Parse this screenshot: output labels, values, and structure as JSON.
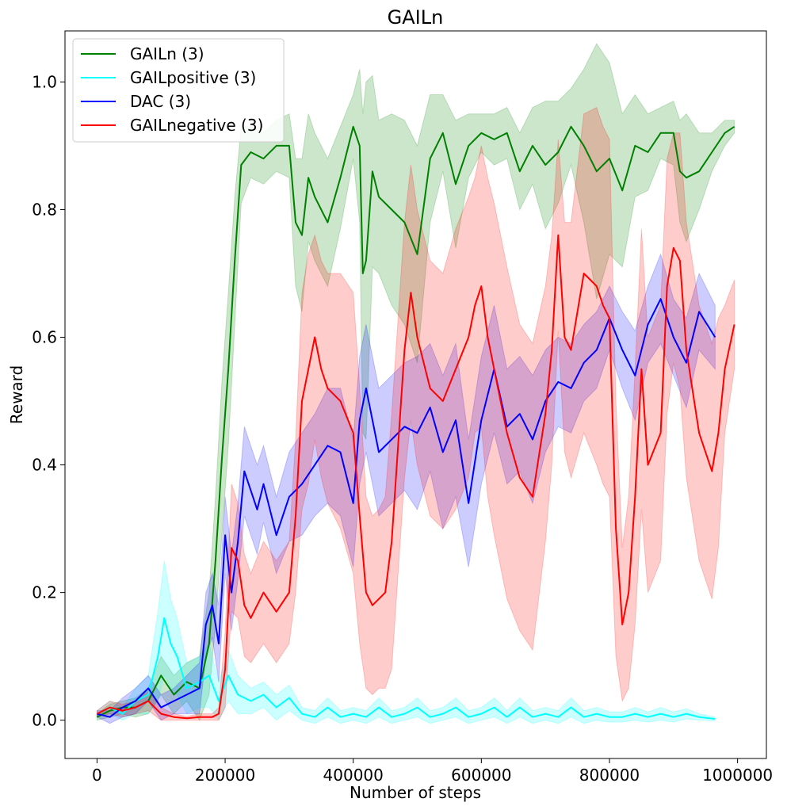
{
  "chart_data": {
    "type": "line",
    "title": "GAILn",
    "xlabel": "Number of steps",
    "ylabel": "Reward",
    "xlim": [
      -50000,
      1045000
    ],
    "ylim": [
      -0.06,
      1.08
    ],
    "xticks": [
      0,
      200000,
      400000,
      600000,
      800000,
      1000000
    ],
    "xtick_labels": [
      "0",
      "200000",
      "400000",
      "600000",
      "800000",
      "1000000"
    ],
    "yticks": [
      0.0,
      0.2,
      0.4,
      0.6,
      0.8,
      1.0
    ],
    "ytick_labels": [
      "0.0",
      "0.2",
      "0.4",
      "0.6",
      "0.8",
      "1.0"
    ],
    "grid": false,
    "legend_position": "top-left",
    "series": [
      {
        "name": "GAILn (3)",
        "color": "#008000",
        "x": [
          0,
          20000,
          40000,
          60000,
          80000,
          100000,
          120000,
          140000,
          160000,
          175000,
          185000,
          195000,
          205000,
          215000,
          225000,
          240000,
          260000,
          280000,
          300000,
          310000,
          320000,
          330000,
          340000,
          350000,
          360000,
          380000,
          400000,
          410000,
          415000,
          420000,
          430000,
          440000,
          460000,
          480000,
          500000,
          520000,
          540000,
          560000,
          580000,
          600000,
          620000,
          640000,
          660000,
          680000,
          700000,
          720000,
          740000,
          760000,
          780000,
          800000,
          820000,
          840000,
          860000,
          880000,
          900000,
          910000,
          920000,
          940000,
          960000,
          980000,
          995000
        ],
        "values": [
          0.005,
          0.015,
          0.02,
          0.02,
          0.03,
          0.07,
          0.04,
          0.06,
          0.05,
          0.12,
          0.25,
          0.41,
          0.55,
          0.72,
          0.87,
          0.89,
          0.88,
          0.9,
          0.9,
          0.78,
          0.76,
          0.85,
          0.82,
          0.8,
          0.78,
          0.85,
          0.93,
          0.9,
          0.7,
          0.72,
          0.86,
          0.82,
          0.8,
          0.78,
          0.73,
          0.88,
          0.92,
          0.84,
          0.9,
          0.92,
          0.91,
          0.92,
          0.86,
          0.9,
          0.87,
          0.89,
          0.93,
          0.9,
          0.86,
          0.88,
          0.83,
          0.9,
          0.89,
          0.92,
          0.92,
          0.86,
          0.85,
          0.86,
          0.89,
          0.92,
          0.93
        ],
        "band_half_width": [
          0.005,
          0.01,
          0.01,
          0.015,
          0.02,
          0.03,
          0.03,
          0.03,
          0.05,
          0.08,
          0.1,
          0.12,
          0.12,
          0.1,
          0.06,
          0.04,
          0.04,
          0.04,
          0.05,
          0.1,
          0.12,
          0.1,
          0.1,
          0.1,
          0.1,
          0.08,
          0.05,
          0.12,
          0.25,
          0.28,
          0.15,
          0.12,
          0.15,
          0.16,
          0.17,
          0.1,
          0.06,
          0.1,
          0.05,
          0.03,
          0.04,
          0.04,
          0.06,
          0.06,
          0.1,
          0.08,
          0.06,
          0.12,
          0.2,
          0.15,
          0.12,
          0.08,
          0.06,
          0.04,
          0.05,
          0.08,
          0.1,
          0.06,
          0.03,
          0.02,
          0.01
        ]
      },
      {
        "name": "GAILpositive (3)",
        "color": "#00ffff",
        "x": [
          0,
          20000,
          40000,
          60000,
          80000,
          95000,
          105000,
          115000,
          125000,
          140000,
          160000,
          175000,
          190000,
          205000,
          220000,
          240000,
          260000,
          280000,
          300000,
          320000,
          340000,
          360000,
          380000,
          400000,
          420000,
          440000,
          460000,
          480000,
          500000,
          520000,
          540000,
          560000,
          580000,
          600000,
          620000,
          640000,
          660000,
          680000,
          700000,
          720000,
          740000,
          760000,
          780000,
          800000,
          820000,
          840000,
          860000,
          880000,
          900000,
          920000,
          940000,
          965000
        ],
        "values": [
          0.01,
          0.02,
          0.01,
          0.03,
          0.04,
          0.1,
          0.16,
          0.12,
          0.1,
          0.05,
          0.06,
          0.07,
          0.03,
          0.07,
          0.04,
          0.03,
          0.04,
          0.02,
          0.035,
          0.01,
          0.005,
          0.02,
          0.005,
          0.01,
          0.005,
          0.02,
          0.005,
          0.01,
          0.02,
          0.005,
          0.01,
          0.02,
          0.005,
          0.01,
          0.02,
          0.005,
          0.02,
          0.005,
          0.01,
          0.005,
          0.02,
          0.005,
          0.01,
          0.005,
          0.005,
          0.01,
          0.005,
          0.01,
          0.005,
          0.01,
          0.005,
          0.002
        ],
        "band_half_width": [
          0.005,
          0.01,
          0.01,
          0.02,
          0.03,
          0.07,
          0.09,
          0.07,
          0.06,
          0.04,
          0.04,
          0.05,
          0.03,
          0.04,
          0.03,
          0.02,
          0.02,
          0.02,
          0.02,
          0.01,
          0.01,
          0.015,
          0.01,
          0.01,
          0.01,
          0.015,
          0.01,
          0.01,
          0.015,
          0.01,
          0.01,
          0.015,
          0.01,
          0.01,
          0.015,
          0.01,
          0.015,
          0.01,
          0.01,
          0.01,
          0.015,
          0.01,
          0.01,
          0.008,
          0.008,
          0.01,
          0.008,
          0.01,
          0.008,
          0.008,
          0.005,
          0.003
        ]
      },
      {
        "name": "DAC (3)",
        "color": "#0000ff",
        "x": [
          0,
          20000,
          40000,
          60000,
          80000,
          100000,
          120000,
          140000,
          160000,
          170000,
          180000,
          190000,
          200000,
          210000,
          220000,
          230000,
          250000,
          260000,
          280000,
          300000,
          320000,
          340000,
          360000,
          380000,
          400000,
          410000,
          420000,
          440000,
          460000,
          480000,
          500000,
          520000,
          540000,
          560000,
          580000,
          600000,
          620000,
          640000,
          660000,
          680000,
          700000,
          720000,
          740000,
          760000,
          780000,
          800000,
          820000,
          840000,
          860000,
          880000,
          900000,
          920000,
          940000,
          965000
        ],
        "values": [
          0.01,
          0.005,
          0.02,
          0.03,
          0.05,
          0.02,
          0.03,
          0.04,
          0.05,
          0.15,
          0.18,
          0.12,
          0.29,
          0.2,
          0.28,
          0.39,
          0.33,
          0.37,
          0.29,
          0.35,
          0.37,
          0.4,
          0.43,
          0.42,
          0.34,
          0.47,
          0.52,
          0.42,
          0.44,
          0.46,
          0.45,
          0.49,
          0.42,
          0.47,
          0.34,
          0.47,
          0.55,
          0.46,
          0.48,
          0.44,
          0.5,
          0.53,
          0.52,
          0.56,
          0.58,
          0.63,
          0.58,
          0.54,
          0.62,
          0.66,
          0.6,
          0.56,
          0.64,
          0.6
        ],
        "band_half_width": [
          0.005,
          0.01,
          0.015,
          0.02,
          0.02,
          0.02,
          0.02,
          0.03,
          0.04,
          0.05,
          0.05,
          0.06,
          0.06,
          0.06,
          0.06,
          0.07,
          0.07,
          0.06,
          0.06,
          0.07,
          0.08,
          0.08,
          0.09,
          0.1,
          0.1,
          0.1,
          0.1,
          0.1,
          0.1,
          0.1,
          0.12,
          0.1,
          0.12,
          0.12,
          0.1,
          0.1,
          0.1,
          0.09,
          0.09,
          0.1,
          0.08,
          0.07,
          0.07,
          0.06,
          0.06,
          0.05,
          0.06,
          0.07,
          0.06,
          0.07,
          0.06,
          0.07,
          0.06,
          0.05
        ]
      },
      {
        "name": "GAILnegative (3)",
        "color": "#ff0000",
        "x": [
          0,
          20000,
          40000,
          60000,
          80000,
          100000,
          120000,
          140000,
          160000,
          180000,
          190000,
          200000,
          210000,
          220000,
          230000,
          240000,
          260000,
          280000,
          300000,
          310000,
          320000,
          330000,
          340000,
          350000,
          360000,
          380000,
          400000,
          410000,
          420000,
          430000,
          440000,
          450000,
          460000,
          480000,
          490000,
          500000,
          520000,
          540000,
          560000,
          580000,
          590000,
          600000,
          610000,
          620000,
          640000,
          660000,
          680000,
          700000,
          710000,
          720000,
          730000,
          740000,
          760000,
          780000,
          790000,
          800000,
          810000,
          820000,
          830000,
          840000,
          850000,
          860000,
          880000,
          890000,
          900000,
          910000,
          920000,
          940000,
          960000,
          970000,
          980000,
          995000
        ],
        "values": [
          0.01,
          0.02,
          0.015,
          0.02,
          0.03,
          0.01,
          0.005,
          0.003,
          0.005,
          0.005,
          0.01,
          0.08,
          0.27,
          0.25,
          0.18,
          0.16,
          0.2,
          0.17,
          0.2,
          0.32,
          0.5,
          0.55,
          0.6,
          0.55,
          0.52,
          0.5,
          0.45,
          0.32,
          0.2,
          0.18,
          0.19,
          0.2,
          0.28,
          0.58,
          0.67,
          0.6,
          0.52,
          0.5,
          0.55,
          0.6,
          0.65,
          0.68,
          0.6,
          0.55,
          0.45,
          0.38,
          0.35,
          0.48,
          0.58,
          0.76,
          0.6,
          0.58,
          0.7,
          0.68,
          0.65,
          0.63,
          0.3,
          0.15,
          0.2,
          0.35,
          0.55,
          0.4,
          0.45,
          0.68,
          0.74,
          0.72,
          0.58,
          0.45,
          0.39,
          0.45,
          0.55,
          0.62
        ],
        "band_half_width": [
          0.005,
          0.01,
          0.01,
          0.01,
          0.015,
          0.01,
          0.005,
          0.003,
          0.005,
          0.005,
          0.01,
          0.06,
          0.1,
          0.09,
          0.08,
          0.07,
          0.08,
          0.08,
          0.08,
          0.12,
          0.17,
          0.18,
          0.16,
          0.17,
          0.18,
          0.2,
          0.22,
          0.2,
          0.15,
          0.14,
          0.14,
          0.15,
          0.2,
          0.2,
          0.2,
          0.2,
          0.2,
          0.2,
          0.22,
          0.22,
          0.2,
          0.22,
          0.25,
          0.26,
          0.26,
          0.24,
          0.24,
          0.2,
          0.18,
          0.15,
          0.18,
          0.2,
          0.25,
          0.28,
          0.28,
          0.28,
          0.2,
          0.12,
          0.15,
          0.2,
          0.22,
          0.2,
          0.2,
          0.2,
          0.18,
          0.2,
          0.2,
          0.2,
          0.2,
          0.18,
          0.1,
          0.07
        ]
      }
    ]
  }
}
